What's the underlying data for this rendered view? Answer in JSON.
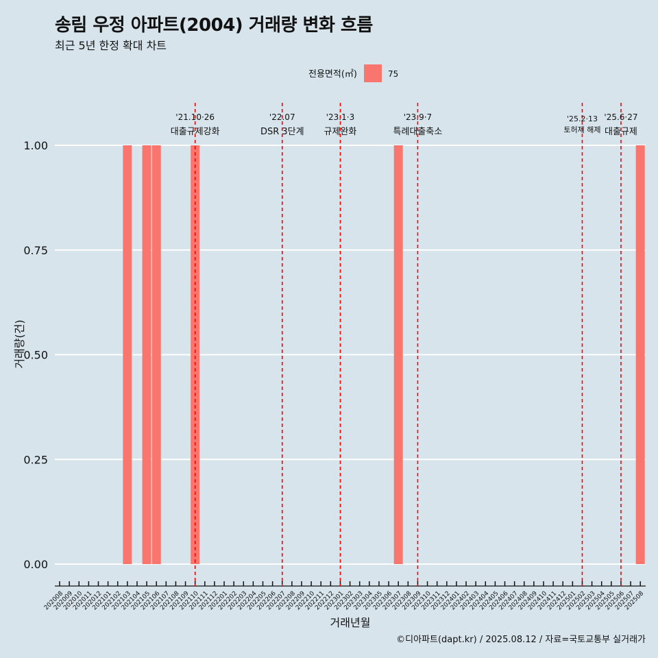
{
  "title": "송림 우정 아파트(2004) 거래량 변화 흐름",
  "subtitle": "최근 5년 한정 확대 차트",
  "caption": "©디아파트(dapt.kr) / 2025.08.12 / 자료=국토교통부 실거래가",
  "colors": {
    "background": "#d7e4eb",
    "bar": "#f8766d",
    "event_line": "#ff0000",
    "grid": "#ffffff"
  },
  "chart_data": {
    "type": "bar",
    "xlabel": "거래년월",
    "ylabel": "거래량(건)",
    "ylim": [
      0,
      1
    ],
    "y_ticks": [
      "0.00",
      "0.25",
      "0.50",
      "0.75",
      "1.00"
    ],
    "legend": {
      "title": "전용면적(㎡)",
      "placement": "top",
      "entries": [
        "75"
      ]
    },
    "categories": [
      "202008",
      "202009",
      "202010",
      "202011",
      "202012",
      "202101",
      "202102",
      "202103",
      "202104",
      "202105",
      "202106",
      "202107",
      "202108",
      "202109",
      "202110",
      "202111",
      "202112",
      "202201",
      "202202",
      "202203",
      "202204",
      "202205",
      "202206",
      "202207",
      "202208",
      "202209",
      "202210",
      "202211",
      "202212",
      "202301",
      "202302",
      "202303",
      "202304",
      "202305",
      "202306",
      "202307",
      "202308",
      "202309",
      "202310",
      "202311",
      "202312",
      "202401",
      "202402",
      "202403",
      "202404",
      "202405",
      "202406",
      "202407",
      "202408",
      "202409",
      "202410",
      "202411",
      "202412",
      "202501",
      "202502",
      "202503",
      "202504",
      "202505",
      "202506",
      "202507",
      "202508"
    ],
    "series": [
      {
        "name": "75",
        "values": [
          0,
          0,
          0,
          0,
          0,
          0,
          0,
          1,
          0,
          1,
          1,
          0,
          0,
          0,
          1,
          0,
          0,
          0,
          0,
          0,
          0,
          0,
          0,
          0,
          0,
          0,
          0,
          0,
          0,
          0,
          0,
          0,
          0,
          0,
          0,
          1,
          0,
          0,
          0,
          0,
          0,
          0,
          0,
          0,
          0,
          0,
          0,
          0,
          0,
          0,
          0,
          0,
          0,
          0,
          0,
          0,
          0,
          0,
          0,
          0,
          1
        ]
      }
    ],
    "events": [
      {
        "month": "202110",
        "date": "'21.10·26",
        "label": "대출규제강화"
      },
      {
        "month": "202207",
        "date": "'22.07",
        "label": "DSR 3단계"
      },
      {
        "month": "202301",
        "date": "'23.1·3",
        "label": "규제완화"
      },
      {
        "month": "202309",
        "date": "'23.9·7",
        "label": "특례대출축소"
      },
      {
        "month": "202502",
        "date": "'25.2·13",
        "label": "토허제 해제"
      },
      {
        "month": "202506",
        "date": "'25.6·27",
        "label": "대출규제"
      }
    ]
  }
}
